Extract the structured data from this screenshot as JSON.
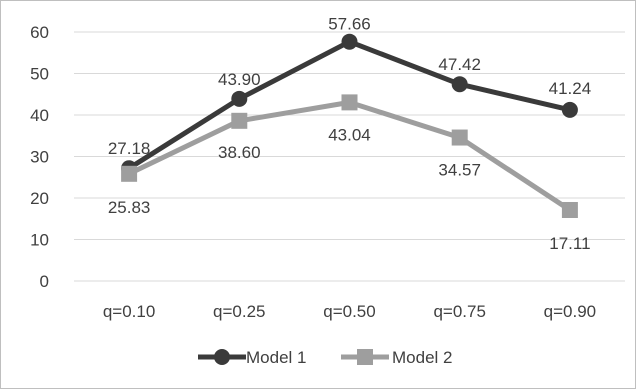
{
  "chart_data": {
    "type": "line",
    "categories": [
      "q=0.10",
      "q=0.25",
      "q=0.50",
      "q=0.75",
      "q=0.90"
    ],
    "series": [
      {
        "name": "Model 1",
        "values": [
          27.18,
          43.9,
          57.66,
          47.42,
          41.24
        ],
        "labels": [
          "27.18",
          "43.90",
          "57.66",
          "47.42",
          "41.24"
        ],
        "color": "#3a3a3a",
        "marker": "circle"
      },
      {
        "name": "Model 2",
        "values": [
          25.83,
          38.6,
          43.04,
          34.57,
          17.11
        ],
        "labels": [
          "25.83",
          "38.60",
          "43.04",
          "34.57",
          "17.11"
        ],
        "color": "#9e9e9e",
        "marker": "square"
      }
    ],
    "yticks": [
      "0",
      "10",
      "20",
      "30",
      "40",
      "50",
      "60"
    ],
    "ylim": [
      0,
      60
    ],
    "grid": true,
    "legend": "bottom",
    "title": "",
    "xlabel": "",
    "ylabel": ""
  }
}
